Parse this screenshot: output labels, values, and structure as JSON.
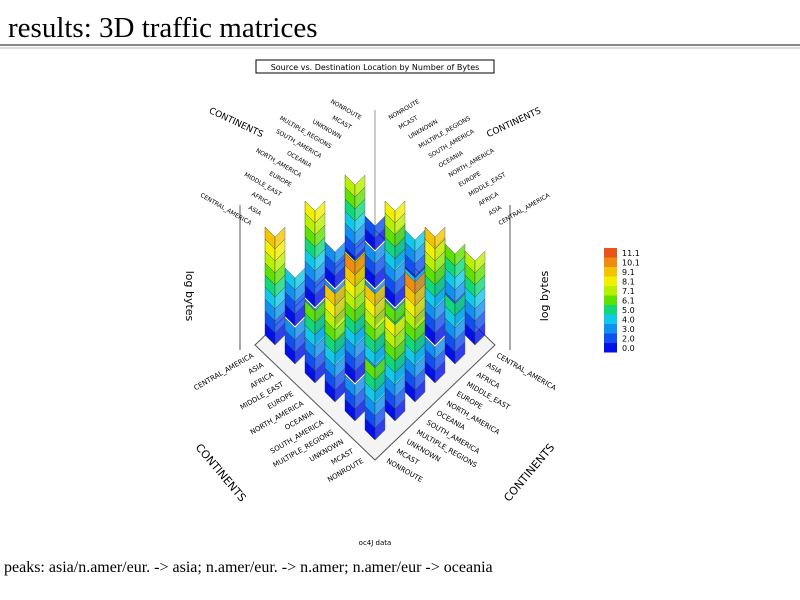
{
  "slide": {
    "title": "results: 3D traffic matrices",
    "figure": {
      "caption": "Source vs. Destination Location by Number of Bytes",
      "z_axis_label": "log bytes",
      "axis_title": "CONTINENTS",
      "categories": [
        "CENTRAL_AMERICA",
        "ASIA",
        "AFRICA",
        "MIDDLE_EAST",
        "EUROPE",
        "NORTH_AMERICA",
        "OCEANIA",
        "SOUTH_AMERICA",
        "MULTIPLE_REGIONS",
        "UNKNOWN",
        "MCAST",
        "NONROUTE"
      ],
      "source_note": "oc4J data",
      "colorbar": {
        "labels": [
          "11.1",
          "10.1",
          "9.1",
          "8.1",
          "7.1",
          "6.1",
          "5.0",
          "4.0",
          "3.0",
          "2.0",
          "0.0"
        ],
        "colors": [
          "#e8541c",
          "#f08a10",
          "#f5c400",
          "#f0f000",
          "#b8f000",
          "#5ee000",
          "#10d878",
          "#10c8e8",
          "#1090f0",
          "#1050f0",
          "#0010e8"
        ]
      }
    },
    "footer": "peaks: asia/n.amer/eur. -> asia; n.amer/eur. -> n.amer; n.amer/eur -> oceania"
  }
}
